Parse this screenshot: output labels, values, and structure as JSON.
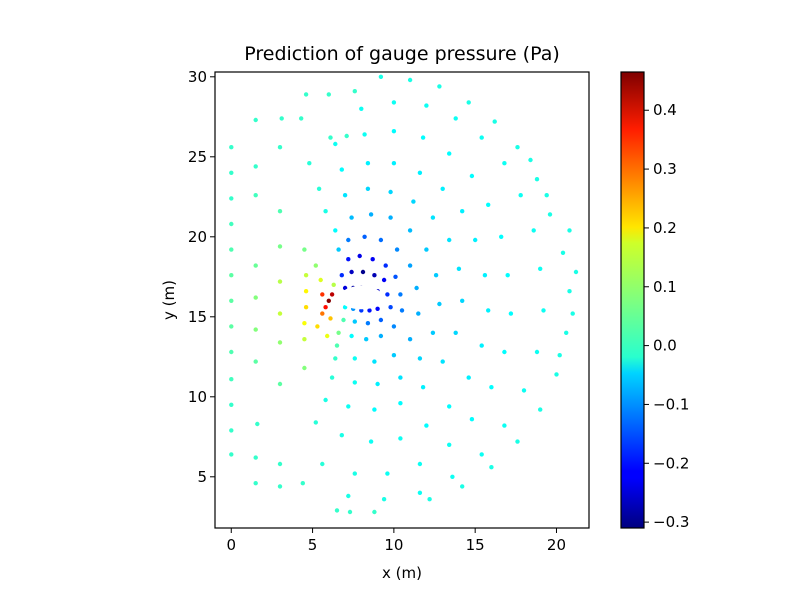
{
  "chart_data": {
    "type": "scatter",
    "title": "Prediction of gauge pressure (Pa)",
    "xlabel": "x (m)",
    "ylabel": "y (m)",
    "xlim": [
      -1.0,
      22.0
    ],
    "ylim": [
      1.8,
      30.3
    ],
    "xticks": [
      0,
      5,
      10,
      15,
      20
    ],
    "yticks": [
      5,
      10,
      15,
      20,
      25,
      30
    ],
    "grid": false,
    "colormap": "jet",
    "colorbar": {
      "range": [
        -0.31,
        0.465
      ],
      "ticks": [
        -0.3,
        -0.2,
        -0.1,
        0.0,
        0.1,
        0.2,
        0.3,
        0.4
      ],
      "tick_labels": [
        "−0.3",
        "−0.2",
        "−0.1",
        "0.0",
        "0.1",
        "0.2",
        "0.3",
        "0.4"
      ]
    },
    "airfoil": {
      "center": [
        8.0,
        16.2
      ],
      "chord": 3.5,
      "thickness": 0.5
    },
    "points": [
      [
        0.0,
        6.4,
        0.02
      ],
      [
        0.0,
        7.9,
        0.02
      ],
      [
        0.0,
        9.5,
        0.02
      ],
      [
        0.0,
        11.1,
        0.03
      ],
      [
        0.0,
        12.8,
        0.04
      ],
      [
        0.0,
        14.4,
        0.05
      ],
      [
        0.0,
        16.0,
        0.05
      ],
      [
        0.0,
        17.6,
        0.05
      ],
      [
        0.0,
        19.2,
        0.04
      ],
      [
        0.0,
        20.8,
        0.03
      ],
      [
        0.0,
        22.4,
        0.02
      ],
      [
        0.0,
        24.0,
        0.02
      ],
      [
        0.0,
        25.6,
        0.02
      ],
      [
        1.5,
        4.6,
        0.02
      ],
      [
        1.5,
        6.2,
        0.02
      ],
      [
        1.5,
        27.3,
        0.02
      ],
      [
        1.6,
        8.3,
        0.02
      ],
      [
        1.5,
        12.2,
        0.05
      ],
      [
        1.5,
        14.2,
        0.08
      ],
      [
        1.5,
        16.2,
        0.08
      ],
      [
        1.5,
        18.2,
        0.06
      ],
      [
        1.5,
        22.6,
        0.03
      ],
      [
        1.5,
        24.4,
        0.02
      ],
      [
        3.0,
        4.4,
        0.02
      ],
      [
        3.0,
        5.8,
        0.02
      ],
      [
        3.1,
        27.4,
        0.02
      ],
      [
        3.0,
        25.6,
        0.02
      ],
      [
        3.0,
        10.8,
        0.05
      ],
      [
        3.0,
        13.4,
        0.09
      ],
      [
        3.0,
        15.2,
        0.13
      ],
      [
        3.0,
        17.2,
        0.12
      ],
      [
        3.0,
        19.4,
        0.07
      ],
      [
        3.0,
        21.6,
        0.04
      ],
      [
        4.3,
        27.4,
        0.02
      ],
      [
        4.6,
        28.9,
        0.02
      ],
      [
        4.4,
        4.6,
        0.02
      ],
      [
        4.5,
        13.6,
        0.13
      ],
      [
        4.5,
        14.6,
        0.17
      ],
      [
        4.6,
        15.6,
        0.2
      ],
      [
        4.6,
        16.6,
        0.18
      ],
      [
        4.6,
        17.6,
        0.13
      ],
      [
        4.5,
        11.8,
        0.08
      ],
      [
        4.5,
        19.2,
        0.07
      ],
      [
        6.0,
        28.9,
        0.02
      ],
      [
        6.1,
        26.2,
        0.02
      ],
      [
        6.0,
        16.0,
        0.46
      ],
      [
        6.2,
        16.4,
        0.42
      ],
      [
        5.8,
        15.6,
        0.36
      ],
      [
        5.6,
        16.4,
        0.33
      ],
      [
        5.6,
        15.2,
        0.28
      ],
      [
        6.3,
        17.0,
        0.12
      ],
      [
        6.1,
        14.9,
        0.22
      ],
      [
        5.5,
        17.3,
        0.15
      ],
      [
        5.3,
        14.4,
        0.2
      ],
      [
        5.9,
        13.8,
        0.16
      ],
      [
        5.2,
        18.2,
        0.09
      ],
      [
        7.6,
        29.1,
        0.02
      ],
      [
        7.1,
        26.3,
        0.02
      ],
      [
        7.3,
        2.8,
        0.02
      ],
      [
        8.8,
        2.8,
        0.02
      ],
      [
        6.5,
        2.9,
        0.02
      ],
      [
        7.0,
        16.8,
        -0.24
      ],
      [
        7.5,
        16.8,
        -0.28
      ],
      [
        8.0,
        16.8,
        -0.29
      ],
      [
        8.5,
        16.7,
        -0.28
      ],
      [
        9.0,
        16.6,
        -0.25
      ],
      [
        7.0,
        15.6,
        -0.02
      ],
      [
        7.5,
        15.5,
        -0.1
      ],
      [
        8.0,
        15.4,
        -0.17
      ],
      [
        8.5,
        15.4,
        -0.2
      ],
      [
        9.0,
        15.5,
        -0.21
      ],
      [
        6.8,
        17.6,
        -0.18
      ],
      [
        7.4,
        17.8,
        -0.26
      ],
      [
        8.1,
        17.8,
        -0.3
      ],
      [
        8.8,
        17.6,
        -0.27
      ],
      [
        9.4,
        17.3,
        -0.22
      ],
      [
        9.6,
        16.4,
        -0.18
      ],
      [
        9.8,
        15.6,
        -0.16
      ],
      [
        9.2,
        14.8,
        -0.14
      ],
      [
        8.4,
        14.6,
        -0.12
      ],
      [
        7.6,
        14.7,
        -0.06
      ],
      [
        6.9,
        14.8,
        0.04
      ],
      [
        6.6,
        14.0,
        0.07
      ],
      [
        7.2,
        18.6,
        -0.2
      ],
      [
        7.9,
        18.8,
        -0.23
      ],
      [
        8.7,
        18.6,
        -0.22
      ],
      [
        9.5,
        18.2,
        -0.18
      ],
      [
        10.1,
        17.5,
        -0.15
      ],
      [
        10.4,
        16.4,
        -0.12
      ],
      [
        10.5,
        15.4,
        -0.12
      ],
      [
        10.0,
        14.4,
        -0.11
      ],
      [
        9.2,
        13.8,
        -0.08
      ],
      [
        8.3,
        13.6,
        -0.06
      ],
      [
        7.4,
        13.8,
        -0.02
      ],
      [
        6.5,
        13.2,
        0.04
      ],
      [
        6.6,
        19.2,
        -0.06
      ],
      [
        7.2,
        19.8,
        -0.12
      ],
      [
        8.2,
        20.0,
        -0.14
      ],
      [
        9.2,
        19.8,
        -0.13
      ],
      [
        10.2,
        19.2,
        -0.11
      ],
      [
        11.0,
        18.2,
        -0.09
      ],
      [
        11.4,
        16.8,
        -0.08
      ],
      [
        11.5,
        15.2,
        -0.08
      ],
      [
        11.0,
        13.6,
        -0.08
      ],
      [
        10.0,
        12.6,
        -0.06
      ],
      [
        8.8,
        12.2,
        -0.04
      ],
      [
        7.6,
        12.4,
        -0.01
      ],
      [
        6.4,
        12.4,
        0.02
      ],
      [
        6.4,
        20.4,
        -0.02
      ],
      [
        7.4,
        21.2,
        -0.07
      ],
      [
        8.6,
        21.4,
        -0.08
      ],
      [
        9.8,
        21.2,
        -0.08
      ],
      [
        11.0,
        20.4,
        -0.07
      ],
      [
        12.0,
        19.2,
        -0.06
      ],
      [
        12.6,
        17.6,
        -0.06
      ],
      [
        12.8,
        15.8,
        -0.06
      ],
      [
        12.4,
        14.0,
        -0.06
      ],
      [
        11.6,
        12.4,
        -0.05
      ],
      [
        10.4,
        11.2,
        -0.04
      ],
      [
        9.0,
        10.8,
        -0.03
      ],
      [
        7.6,
        10.9,
        -0.01
      ],
      [
        6.2,
        11.2,
        0.01
      ],
      [
        5.8,
        21.6,
        0.0
      ],
      [
        7.0,
        22.6,
        -0.04
      ],
      [
        8.4,
        23.0,
        -0.05
      ],
      [
        9.8,
        22.8,
        -0.05
      ],
      [
        11.2,
        22.2,
        -0.05
      ],
      [
        12.4,
        21.2,
        -0.04
      ],
      [
        13.4,
        19.8,
        -0.04
      ],
      [
        14.0,
        18.0,
        -0.04
      ],
      [
        14.2,
        16.0,
        -0.05
      ],
      [
        13.8,
        14.0,
        -0.05
      ],
      [
        13.0,
        12.2,
        -0.04
      ],
      [
        11.8,
        10.6,
        -0.03
      ],
      [
        10.4,
        9.6,
        -0.02
      ],
      [
        8.8,
        9.2,
        -0.02
      ],
      [
        7.2,
        9.4,
        -0.01
      ],
      [
        5.8,
        9.8,
        0.0
      ],
      [
        5.4,
        23.0,
        0.01
      ],
      [
        6.8,
        24.2,
        -0.02
      ],
      [
        8.4,
        24.6,
        -0.03
      ],
      [
        10.0,
        24.6,
        -0.03
      ],
      [
        11.6,
        24.0,
        -0.03
      ],
      [
        13.0,
        23.0,
        -0.03
      ],
      [
        14.2,
        21.6,
        -0.03
      ],
      [
        15.0,
        19.8,
        -0.03
      ],
      [
        15.6,
        17.6,
        -0.03
      ],
      [
        15.8,
        15.4,
        -0.03
      ],
      [
        15.4,
        13.2,
        -0.03
      ],
      [
        14.6,
        11.2,
        -0.03
      ],
      [
        13.4,
        9.4,
        -0.02
      ],
      [
        12.0,
        8.2,
        -0.02
      ],
      [
        10.4,
        7.4,
        -0.01
      ],
      [
        8.6,
        7.2,
        -0.01
      ],
      [
        6.8,
        7.6,
        0.0
      ],
      [
        5.2,
        8.4,
        0.01
      ],
      [
        4.8,
        24.6,
        0.01
      ],
      [
        6.4,
        25.8,
        -0.01
      ],
      [
        8.2,
        26.4,
        -0.01
      ],
      [
        10.0,
        26.6,
        -0.02
      ],
      [
        11.8,
        26.2,
        -0.02
      ],
      [
        13.4,
        25.2,
        -0.02
      ],
      [
        14.8,
        23.8,
        -0.02
      ],
      [
        15.8,
        22.0,
        -0.02
      ],
      [
        16.6,
        20.0,
        -0.02
      ],
      [
        17.0,
        17.6,
        -0.02
      ],
      [
        17.2,
        15.2,
        -0.02
      ],
      [
        16.8,
        12.8,
        -0.02
      ],
      [
        16.0,
        10.6,
        -0.02
      ],
      [
        14.8,
        8.6,
        -0.02
      ],
      [
        13.4,
        7.0,
        -0.01
      ],
      [
        11.6,
        5.8,
        -0.01
      ],
      [
        9.6,
        5.2,
        -0.01
      ],
      [
        7.6,
        5.2,
        0.0
      ],
      [
        5.6,
        5.8,
        0.01
      ],
      [
        8.0,
        28.0,
        -0.01
      ],
      [
        10.0,
        28.4,
        -0.01
      ],
      [
        12.0,
        28.2,
        -0.01
      ],
      [
        13.8,
        27.4,
        -0.01
      ],
      [
        15.4,
        26.2,
        -0.01
      ],
      [
        16.8,
        24.6,
        -0.01
      ],
      [
        17.8,
        22.6,
        -0.01
      ],
      [
        18.6,
        20.4,
        -0.01
      ],
      [
        19.0,
        18.0,
        -0.01
      ],
      [
        19.2,
        15.4,
        -0.01
      ],
      [
        18.8,
        12.8,
        -0.01
      ],
      [
        18.0,
        10.4,
        -0.01
      ],
      [
        16.8,
        8.2,
        -0.01
      ],
      [
        15.4,
        6.4,
        -0.01
      ],
      [
        13.6,
        5.0,
        -0.01
      ],
      [
        11.6,
        4.0,
        -0.01
      ],
      [
        9.4,
        3.6,
        0.0
      ],
      [
        7.2,
        3.8,
        0.0
      ],
      [
        9.2,
        30.0,
        0.0
      ],
      [
        11.0,
        29.8,
        0.0
      ],
      [
        12.8,
        29.4,
        0.0
      ],
      [
        14.6,
        28.4,
        0.0
      ],
      [
        16.2,
        27.2,
        0.0
      ],
      [
        17.6,
        25.6,
        0.0
      ],
      [
        18.8,
        23.6,
        0.0
      ],
      [
        19.6,
        21.4,
        0.0
      ],
      [
        20.4,
        19.0,
        0.0
      ],
      [
        20.8,
        16.6,
        0.0
      ],
      [
        20.6,
        14.0,
        0.0
      ],
      [
        20.0,
        11.4,
        0.0
      ],
      [
        19.0,
        9.2,
        0.0
      ],
      [
        17.6,
        7.2,
        0.0
      ],
      [
        16.0,
        5.6,
        0.0
      ],
      [
        14.2,
        4.4,
        0.0
      ],
      [
        12.2,
        3.6,
        0.0
      ],
      [
        21.2,
        17.8,
        0.0
      ],
      [
        21.0,
        15.2,
        0.0
      ],
      [
        20.2,
        12.6,
        0.0
      ],
      [
        20.8,
        20.4,
        0.0
      ],
      [
        19.4,
        22.6,
        0.0
      ],
      [
        18.4,
        24.8,
        0.0
      ]
    ]
  }
}
